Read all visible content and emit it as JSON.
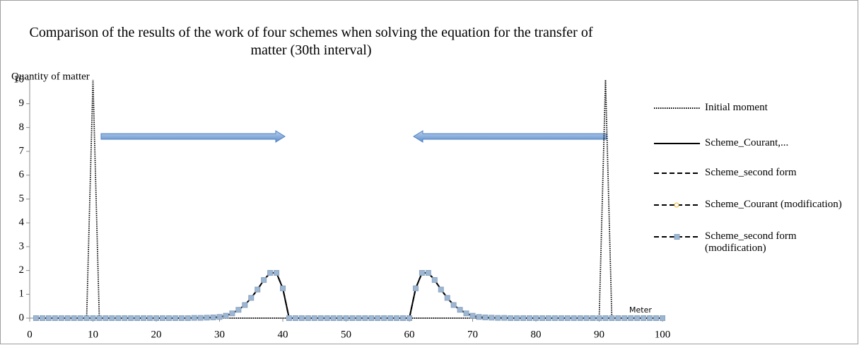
{
  "chart_data": {
    "type": "line",
    "title": "Comparison of the results of the work of four schemes when solving the equation for the transfer of matter (30th interval)",
    "xlabel": "Meter",
    "ylabel": "Quantity of matter",
    "xlim": [
      0,
      100
    ],
    "xticks": [
      0,
      10,
      20,
      30,
      40,
      50,
      60,
      70,
      80,
      90,
      100
    ],
    "ylim": [
      0,
      10
    ],
    "yticks": [
      0,
      1,
      2,
      3,
      4,
      5,
      6,
      7,
      8,
      9,
      10
    ],
    "legend": "right",
    "x": [
      1,
      2,
      3,
      4,
      5,
      6,
      7,
      8,
      9,
      10,
      11,
      12,
      13,
      14,
      15,
      16,
      17,
      18,
      19,
      20,
      21,
      22,
      23,
      24,
      25,
      26,
      27,
      28,
      29,
      30,
      31,
      32,
      33,
      34,
      35,
      36,
      37,
      38,
      39,
      40,
      41,
      42,
      43,
      44,
      45,
      46,
      47,
      48,
      49,
      50,
      51,
      52,
      53,
      54,
      55,
      56,
      57,
      58,
      59,
      60,
      61,
      62,
      63,
      64,
      65,
      66,
      67,
      68,
      69,
      70,
      71,
      72,
      73,
      74,
      75,
      76,
      77,
      78,
      79,
      80,
      81,
      82,
      83,
      84,
      85,
      86,
      87,
      88,
      89,
      90,
      91,
      92,
      93,
      94,
      95,
      96,
      97,
      98,
      99,
      100
    ],
    "series": [
      {
        "name": "Initial moment",
        "color": "#000000",
        "dash": "dotted",
        "marker": "none",
        "values": [
          0,
          0,
          0,
          0,
          0,
          0,
          0,
          0,
          0,
          10,
          0,
          0,
          0,
          0,
          0,
          0,
          0,
          0,
          0,
          0,
          0,
          0,
          0,
          0,
          0,
          0,
          0,
          0,
          0,
          0,
          0,
          0,
          0,
          0,
          0,
          0,
          0,
          0,
          0,
          0,
          0,
          0,
          0,
          0,
          0,
          0,
          0,
          0,
          0,
          0,
          0,
          0,
          0,
          0,
          0,
          0,
          0,
          0,
          0,
          0,
          0,
          0,
          0,
          0,
          0,
          0,
          0,
          0,
          0,
          0,
          0,
          0,
          0,
          0,
          0,
          0,
          0,
          0,
          0,
          0,
          0,
          0,
          0,
          0,
          0,
          0,
          0,
          0,
          0,
          0,
          10,
          0,
          0,
          0,
          0,
          0,
          0,
          0,
          0,
          0
        ]
      },
      {
        "name": "Scheme_Courant,...",
        "color": "#000000",
        "dash": "solid",
        "marker": "none",
        "values": [
          0,
          0,
          0,
          0,
          0,
          0,
          0,
          0,
          0,
          0,
          0,
          0,
          0,
          0,
          0,
          0,
          0,
          0,
          0,
          0,
          0,
          0,
          0,
          0,
          0,
          0.01,
          0.01,
          0.02,
          0.03,
          0.05,
          0.1,
          0.2,
          0.35,
          0.55,
          0.85,
          1.2,
          1.6,
          1.9,
          1.9,
          1.25,
          0,
          0,
          0,
          0,
          0,
          0,
          0,
          0,
          0,
          0,
          0,
          0,
          0,
          0,
          0,
          0,
          0,
          0,
          0,
          0,
          1.25,
          1.9,
          1.9,
          1.6,
          1.2,
          0.85,
          0.55,
          0.35,
          0.2,
          0.1,
          0.05,
          0.03,
          0.02,
          0.01,
          0.01,
          0,
          0,
          0,
          0,
          0,
          0,
          0,
          0,
          0,
          0,
          0,
          0,
          0,
          0,
          0,
          0,
          0,
          0,
          0,
          0,
          0,
          0,
          0,
          0,
          0
        ]
      },
      {
        "name": "Scheme_second form",
        "color": "#000000",
        "dash": "dashed",
        "marker": "none",
        "values": [
          0,
          0,
          0,
          0,
          0,
          0,
          0,
          0,
          0,
          0,
          0,
          0,
          0,
          0,
          0,
          0,
          0,
          0,
          0,
          0,
          0,
          0,
          0,
          0,
          0,
          0.01,
          0.01,
          0.02,
          0.03,
          0.05,
          0.1,
          0.2,
          0.35,
          0.55,
          0.85,
          1.2,
          1.6,
          1.9,
          1.9,
          1.25,
          0,
          0,
          0,
          0,
          0,
          0,
          0,
          0,
          0,
          0,
          0,
          0,
          0,
          0,
          0,
          0,
          0,
          0,
          0,
          0,
          1.25,
          1.9,
          1.9,
          1.6,
          1.2,
          0.85,
          0.55,
          0.35,
          0.2,
          0.1,
          0.05,
          0.03,
          0.02,
          0.01,
          0.01,
          0,
          0,
          0,
          0,
          0,
          0,
          0,
          0,
          0,
          0,
          0,
          0,
          0,
          0,
          0,
          0,
          0,
          0,
          0,
          0,
          0,
          0,
          0,
          0,
          0
        ]
      },
      {
        "name": "Scheme_Courant (modification)",
        "color": "#000000",
        "dash": "dashed",
        "marker": "circle",
        "marker_color": "#e8b830",
        "values": [
          0,
          0,
          0,
          0,
          0,
          0,
          0,
          0,
          0,
          0,
          0,
          0,
          0,
          0,
          0,
          0,
          0,
          0,
          0,
          0,
          0,
          0,
          0,
          0,
          0,
          0.01,
          0.01,
          0.02,
          0.03,
          0.05,
          0.1,
          0.2,
          0.35,
          0.55,
          0.85,
          1.2,
          1.6,
          1.9,
          1.9,
          1.25,
          0,
          0,
          0,
          0,
          0,
          0,
          0,
          0,
          0,
          0,
          0,
          0,
          0,
          0,
          0,
          0,
          0,
          0,
          0,
          0,
          1.25,
          1.9,
          1.9,
          1.6,
          1.2,
          0.85,
          0.55,
          0.35,
          0.2,
          0.1,
          0.05,
          0.03,
          0.02,
          0.01,
          0.01,
          0,
          0,
          0,
          0,
          0,
          0,
          0,
          0,
          0,
          0,
          0,
          0,
          0,
          0,
          0,
          0,
          0,
          0,
          0,
          0,
          0,
          0,
          0,
          0,
          0
        ]
      },
      {
        "name": "Scheme_second form (modification)",
        "color": "#000000",
        "dash": "dashed",
        "marker": "square",
        "marker_color": "#9db6d2",
        "values": [
          0,
          0,
          0,
          0,
          0,
          0,
          0,
          0,
          0,
          0,
          0,
          0,
          0,
          0,
          0,
          0,
          0,
          0,
          0,
          0,
          0,
          0,
          0,
          0,
          0,
          0.01,
          0.01,
          0.02,
          0.03,
          0.05,
          0.1,
          0.2,
          0.35,
          0.55,
          0.85,
          1.2,
          1.6,
          1.9,
          1.9,
          1.25,
          0,
          0,
          0,
          0,
          0,
          0,
          0,
          0,
          0,
          0,
          0,
          0,
          0,
          0,
          0,
          0,
          0,
          0,
          0,
          0,
          1.25,
          1.9,
          1.9,
          1.6,
          1.2,
          0.85,
          0.55,
          0.35,
          0.2,
          0.1,
          0.05,
          0.03,
          0.02,
          0.01,
          0.01,
          0,
          0,
          0,
          0,
          0,
          0,
          0,
          0,
          0,
          0,
          0,
          0,
          0,
          0,
          0,
          0,
          0,
          0,
          0,
          0,
          0,
          0,
          0,
          0,
          0
        ]
      }
    ]
  }
}
